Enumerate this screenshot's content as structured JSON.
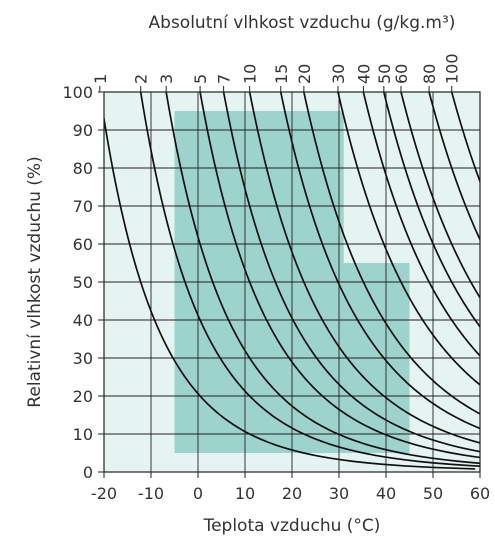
{
  "chart_data": {
    "type": "line",
    "title": "",
    "xlabel": "Teplota vzduchu (°C)",
    "ylabel": "Relativní vlhkost vzduchu (%)",
    "top_axis_label": "Absolutní vlhkost vzduchu (g/kg.m³)",
    "xlim": [
      -20,
      60
    ],
    "ylim": [
      0,
      100
    ],
    "x_ticks": [
      -20,
      -10,
      0,
      10,
      20,
      30,
      40,
      50,
      60
    ],
    "y_ticks": [
      0,
      10,
      20,
      30,
      40,
      50,
      60,
      70,
      80,
      90,
      100
    ],
    "grid": true,
    "absolute_humidity_curves": [
      1,
      2,
      3,
      5,
      7,
      10,
      15,
      20,
      30,
      40,
      50,
      60,
      80,
      100
    ],
    "top_tick_labels": [
      "1",
      "2",
      "3",
      "5",
      "7",
      "10",
      "15",
      "20",
      "30",
      "40",
      "50",
      "60",
      "80",
      "100"
    ],
    "operating_region": {
      "points": [
        [
          -5,
          95
        ],
        [
          31,
          95
        ],
        [
          31,
          55
        ],
        [
          45,
          55
        ],
        [
          45,
          5
        ],
        [
          -5,
          5
        ]
      ]
    },
    "colors": {
      "background": "#e6f4f1",
      "region": "#9dd3cd",
      "curve": "#111111",
      "grid": "#222222"
    }
  }
}
